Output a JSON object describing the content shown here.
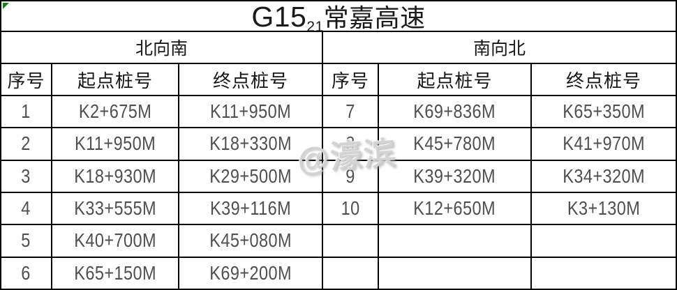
{
  "title": {
    "route_code": "G15",
    "route_sub": "21",
    "route_name": "常嘉高速"
  },
  "watermark_text": "@濠滨",
  "column_headers": {
    "seq": "序号",
    "start": "起点桩号",
    "end": "终点桩号"
  },
  "sections": {
    "left": {
      "direction": "北向南",
      "rows": [
        {
          "seq": "1",
          "start": "K2+675M",
          "end": "K11+950M"
        },
        {
          "seq": "2",
          "start": "K11+950M",
          "end": "K18+330M"
        },
        {
          "seq": "3",
          "start": "K18+930M",
          "end": "K29+500M"
        },
        {
          "seq": "4",
          "start": "K33+555M",
          "end": "K39+116M"
        },
        {
          "seq": "5",
          "start": "K40+700M",
          "end": "K45+080M"
        },
        {
          "seq": "6",
          "start": "K65+150M",
          "end": "K69+200M"
        }
      ]
    },
    "right": {
      "direction": "南向北",
      "rows": [
        {
          "seq": "7",
          "start": "K69+836M",
          "end": "K65+350M"
        },
        {
          "seq": "8",
          "start": "K45+780M",
          "end": "K41+970M"
        },
        {
          "seq": "9",
          "start": "K39+320M",
          "end": "K34+320M"
        },
        {
          "seq": "10",
          "start": "K12+650M",
          "end": "K3+130M"
        },
        {
          "seq": "",
          "start": "",
          "end": ""
        },
        {
          "seq": "",
          "start": "",
          "end": ""
        }
      ]
    }
  },
  "colors": {
    "border": "#000000",
    "header_text": "#151515",
    "data_text": "#4f4f4f",
    "watermark": "#cdcdcd",
    "corner_flag_green": "#1e7a1e",
    "background": "#ffffff"
  }
}
